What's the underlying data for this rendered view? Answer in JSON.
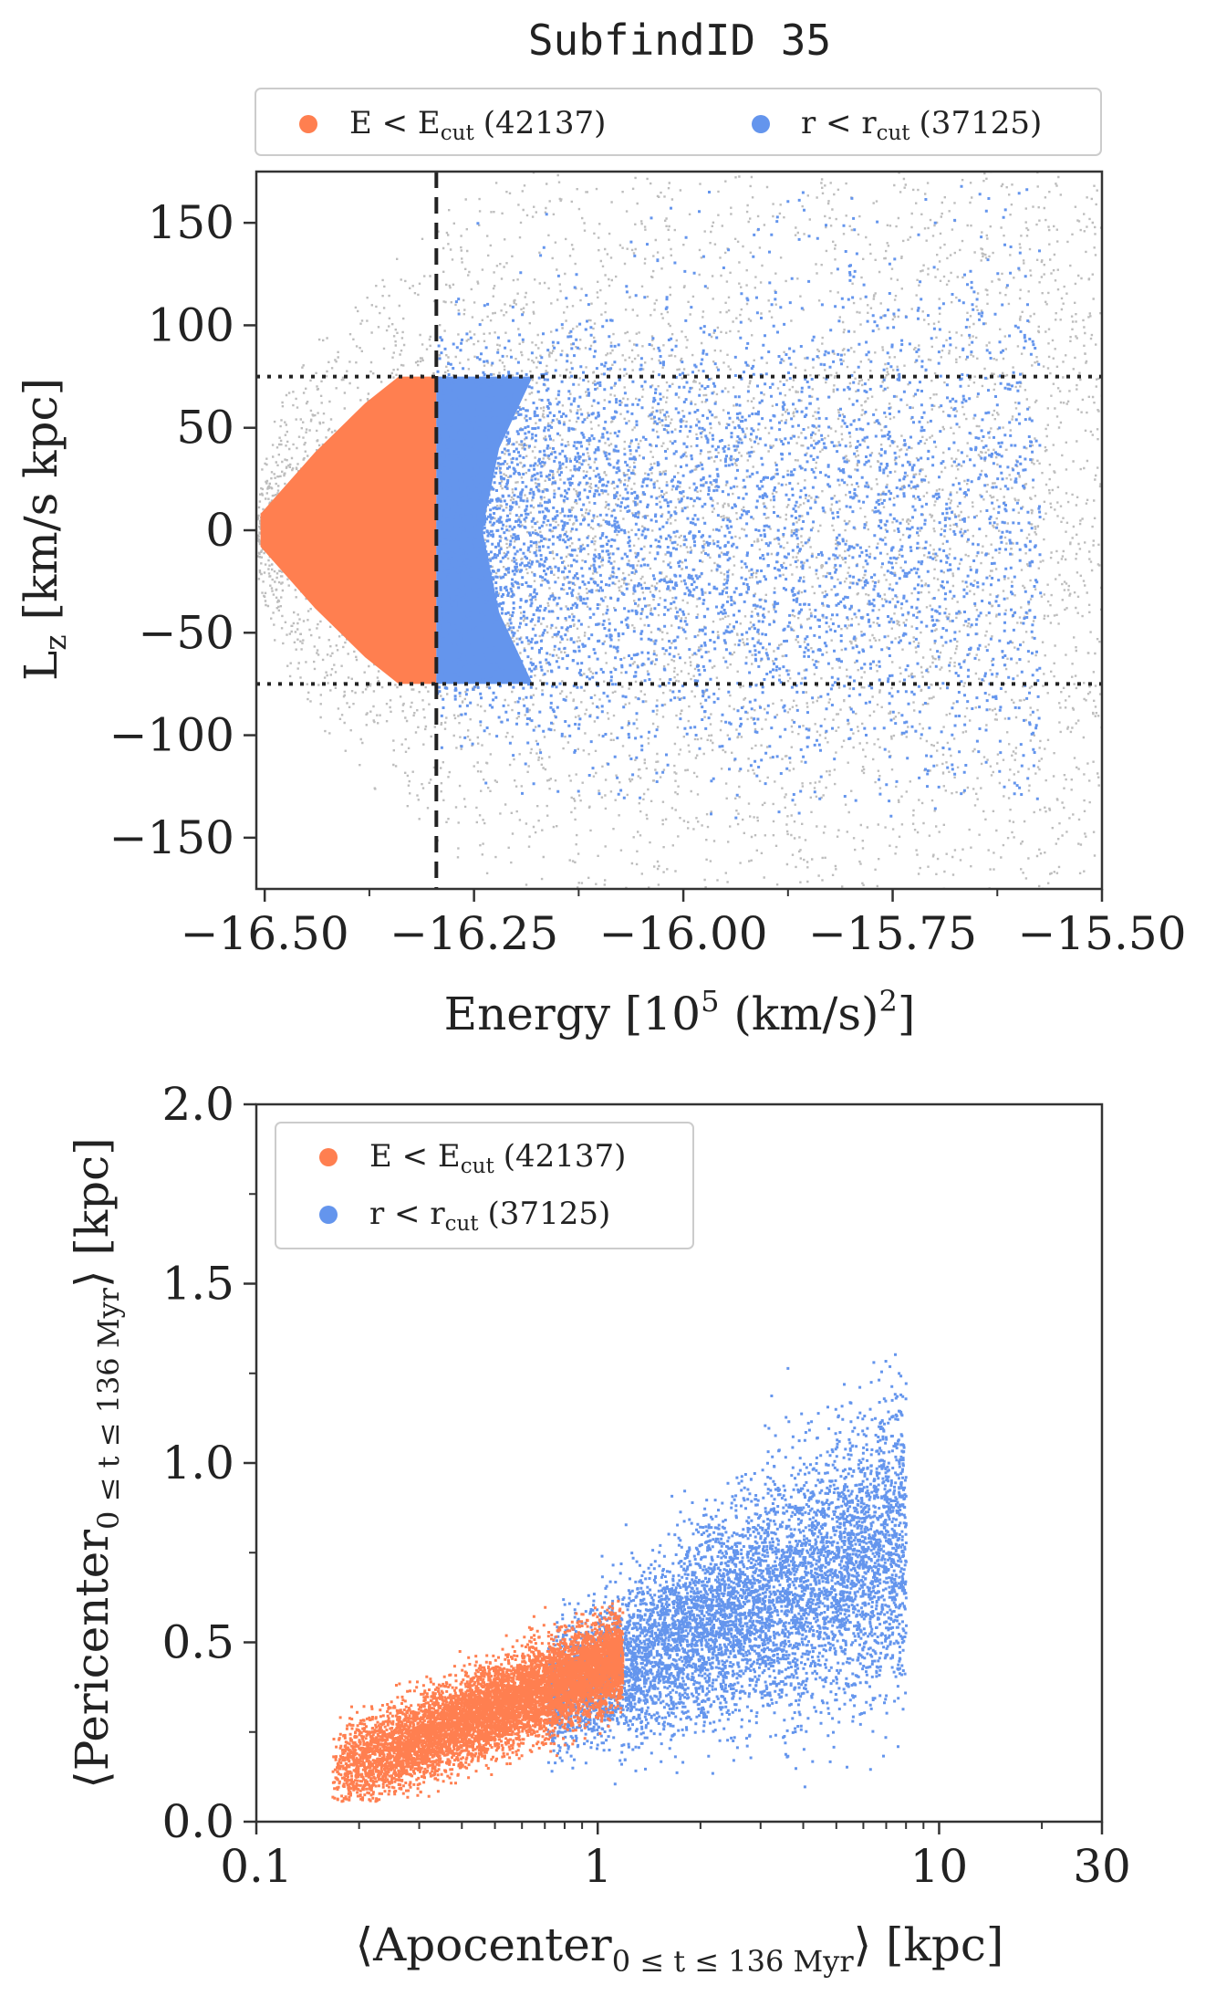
{
  "figure_title": "SubfindID 35",
  "colors": {
    "background_scatter": "#bdbdbd",
    "energy_cut": "#ff7f50",
    "radius_cut": "#6495ed",
    "axis": "#333333",
    "cut_line": "#222222"
  },
  "legend": {
    "energy_label": "E < E",
    "energy_sub": "cut",
    "energy_count": "(42137)",
    "radius_label": "r < r",
    "radius_sub": "cut",
    "radius_count": "(37125)"
  },
  "chart_data": [
    {
      "type": "scatter",
      "title": "SubfindID 35",
      "xlabel": "Energy [10^5 (km/s)^2]",
      "ylabel": "L_z [km/s kpc]",
      "xlim": [
        -16.51,
        -15.5
      ],
      "ylim": [
        -175,
        175
      ],
      "xticks": [
        -16.5,
        -16.25,
        -16.0,
        -15.75,
        -15.5
      ],
      "xtick_labels": [
        "−16.50",
        "−16.25",
        "−16.00",
        "−15.75",
        "−15.50"
      ],
      "yticks": [
        -150,
        -100,
        -50,
        0,
        50,
        100,
        150
      ],
      "ytick_labels": [
        "−150",
        "−100",
        "−50",
        "0",
        "50",
        "100",
        "150"
      ],
      "cut_lines": {
        "energy_cut": -16.295,
        "lz_upper": 75,
        "lz_lower": -75
      },
      "legend_position": "top-outside",
      "grid": false,
      "series": [
        {
          "name": "E < E_cut (42137)",
          "color": "#ff7f50",
          "count": 42137,
          "region": "E from -16.51 to -16.295, |Lz| <= 75"
        },
        {
          "name": "r < r_cut (37125)",
          "color": "#6495ed",
          "count": 37125,
          "region": "E from -16.295 to about -15.56, Lz -140 to 175"
        },
        {
          "name": "",
          "color": "#bdbdbd",
          "region": "all particles, E -16.51 to -15.5, Lz -175 to 175"
        }
      ]
    },
    {
      "type": "scatter",
      "xlabel": "⟨Apocenter_{0 ≤ t ≤ 136 Myr}⟩ [kpc]",
      "ylabel": "⟨Pericenter_{0 ≤ t ≤ 136 Myr}⟩ [kpc]",
      "xscale": "log",
      "xlim": [
        0.1,
        30
      ],
      "ylim": [
        0.0,
        2.0
      ],
      "xticks": [
        0.1,
        1,
        10,
        30
      ],
      "xtick_labels": [
        "0.1",
        "1",
        "10",
        "30"
      ],
      "yticks": [
        0.0,
        0.5,
        1.0,
        1.5,
        2.0
      ],
      "ytick_labels": [
        "0.0",
        "0.5",
        "1.0",
        "1.5",
        "2.0"
      ],
      "legend_position": "top-left",
      "grid": false,
      "series": [
        {
          "name": "E < E_cut (42137)",
          "color": "#ff7f50",
          "count": 42137,
          "region": "apocenter 0.16 to 1.2 kpc, pericenter 0.06 to 0.62 kpc"
        },
        {
          "name": "r < r_cut (37125)",
          "color": "#6495ed",
          "count": 37125,
          "region": "apocenter 0.7 to 8 kpc, pericenter 0.09 to 1.55 kpc"
        }
      ]
    }
  ],
  "labels": {
    "top_xlabel_main": "Energy [10",
    "top_xlabel_exp": "5",
    "top_xlabel_mid": " (km/s)",
    "top_xlabel_exp2": "2",
    "top_xlabel_end": "]",
    "top_ylabel_main": "L",
    "top_ylabel_sub": "z",
    "top_ylabel_end": " [km/s kpc]",
    "bottom_xlabel_main": "⟨Apocenter",
    "bottom_xlabel_sub": "0 ≤ t ≤ 136 Myr",
    "bottom_xlabel_end": "⟩ [kpc]",
    "bottom_ylabel_main": "⟨Pericenter",
    "bottom_ylabel_sub": "0 ≤ t ≤ 136 Myr",
    "bottom_ylabel_end": "⟩ [kpc]"
  }
}
